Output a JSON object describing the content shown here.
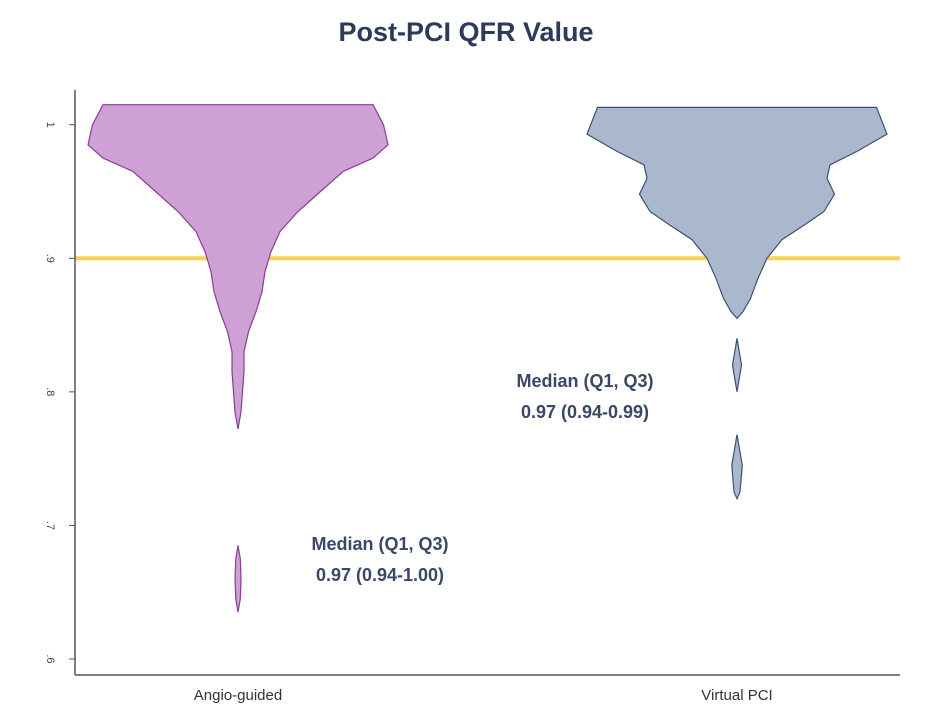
{
  "chart_data": {
    "type": "violin",
    "title": "Post-PCI QFR Value",
    "categories": [
      "Angio-guided",
      "Virtual PCI"
    ],
    "series": [
      {
        "name": "Angio-guided",
        "color": "#cfa0d6",
        "edge_color": "#8a3d96",
        "y": [
          1.015,
          1.0,
          0.985,
          0.975,
          0.965,
          0.95,
          0.935,
          0.92,
          0.905,
          0.89,
          0.875,
          0.86,
          0.845,
          0.83,
          0.815,
          0.8,
          0.785,
          0.772,
          null,
          0.685,
          0.675,
          0.66,
          0.645,
          0.635
        ],
        "density": [
          0.9,
          0.97,
          1.0,
          0.9,
          0.7,
          0.55,
          0.4,
          0.28,
          0.22,
          0.18,
          0.16,
          0.12,
          0.07,
          0.04,
          0.04,
          0.03,
          0.02,
          0,
          null,
          0,
          0.015,
          0.02,
          0.015,
          0
        ],
        "annotation": [
          "Median (Q1, Q3)",
          "0.97 (0.94-1.00)"
        ]
      },
      {
        "name": "Virtual PCI",
        "color": "#a9b8cc",
        "edge_color": "#3d5070",
        "y": [
          1.013,
          0.993,
          0.98,
          0.97,
          0.96,
          0.948,
          0.935,
          0.925,
          0.914,
          0.9,
          0.885,
          0.87,
          0.86,
          0.855,
          null,
          0.84,
          0.82,
          0.8,
          null,
          0.768,
          0.745,
          0.725,
          0.72
        ],
        "density": [
          0.93,
          1.0,
          0.8,
          0.62,
          0.6,
          0.65,
          0.58,
          0.45,
          0.3,
          0.2,
          0.14,
          0.09,
          0.04,
          0,
          null,
          0,
          0.03,
          0,
          null,
          0,
          0.035,
          0.02,
          0
        ],
        "annotation": [
          "Median (Q1, Q3)",
          "0.97 (0.94-0.99)"
        ]
      }
    ],
    "reference_line": {
      "value": 0.9,
      "color": "#f7d44c"
    },
    "ylim": [
      0.588,
      1.026
    ],
    "yticks": [
      {
        "value": 0.6,
        "label": ".6"
      },
      {
        "value": 0.7,
        "label": ".7"
      },
      {
        "value": 0.8,
        "label": ".8"
      },
      {
        "value": 0.9,
        "label": ".9"
      },
      1
    ],
    "grid": false
  }
}
